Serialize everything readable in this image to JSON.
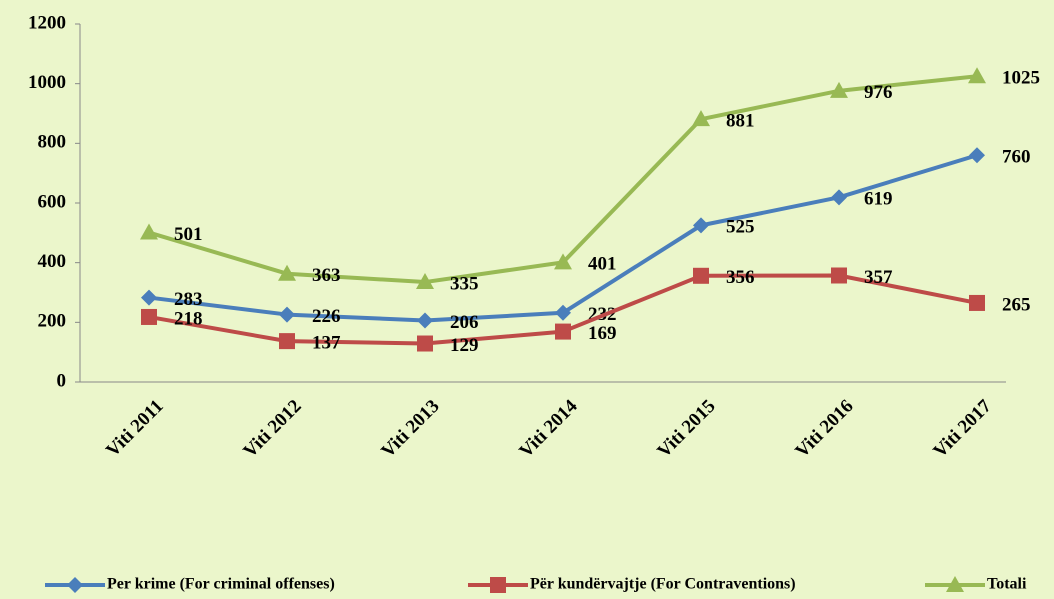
{
  "chart_data": {
    "type": "line",
    "categories": [
      "Viti 2011",
      "Viti 2012",
      "Viti 2013",
      "Viti 2014",
      "Viti 2015",
      "Viti 2016",
      "Viti 2017"
    ],
    "series": [
      {
        "name": "Per krime (For criminal offenses)",
        "color": "#4a7ebb",
        "marker": "diamond",
        "values": [
          283,
          226,
          206,
          232,
          525,
          619,
          760
        ]
      },
      {
        "name": "Për kundërvajtje (For Contraventions)",
        "color": "#be4b48",
        "marker": "square",
        "values": [
          218,
          137,
          129,
          169,
          356,
          357,
          265
        ]
      },
      {
        "name": "Totali",
        "color": "#98b954",
        "marker": "triangle",
        "values": [
          501,
          363,
          335,
          401,
          881,
          976,
          1025
        ]
      }
    ],
    "ylim": [
      0,
      1200
    ],
    "yticks": [
      0,
      200,
      400,
      600,
      800,
      1000,
      1200
    ],
    "legend": "bottom"
  }
}
